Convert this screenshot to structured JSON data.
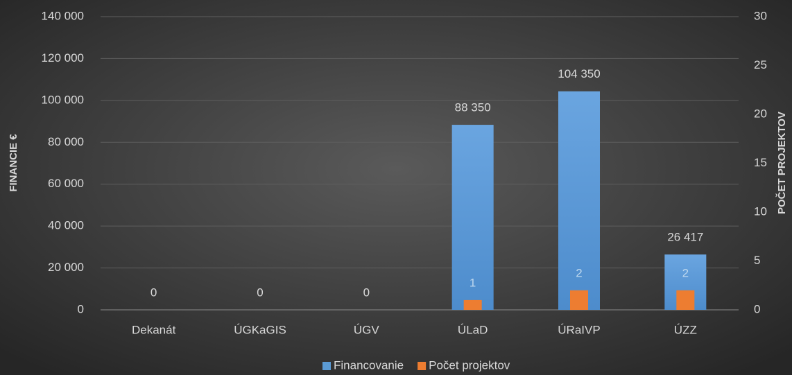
{
  "chart_data": {
    "type": "bar",
    "categories": [
      "Dekanát",
      "ÚGKaGIS",
      "ÚGV",
      "ÚLaD",
      "ÚRaIVP",
      "ÚZZ"
    ],
    "series": [
      {
        "name": "Financovanie",
        "color": "#5b9bd5",
        "values": [
          0,
          0,
          0,
          88350,
          104350,
          26417
        ],
        "value_labels": [
          "0",
          "0",
          "0",
          "88 350",
          "104 350",
          "26 417"
        ]
      },
      {
        "name": "Počet projektov",
        "color": "#ed7d31",
        "axis": "y2",
        "values": [
          0,
          0,
          0,
          1,
          2,
          2
        ]
      }
    ],
    "ylabel": "FINANCIE €",
    "y2label": "POČET PROJEKTOV",
    "ylim": [
      0,
      140000
    ],
    "yticks": [
      0,
      {
        "value": 20000,
        "label": "20 000"
      },
      {
        "value": 40000,
        "label": "40 000"
      },
      {
        "value": 60000,
        "label": "60 000"
      },
      {
        "value": 80000,
        "label": "80 000"
      },
      {
        "value": 100000,
        "label": "100 000"
      },
      {
        "value": 120000,
        "label": "120 000"
      },
      {
        "value": 140000,
        "label": "140 000"
      }
    ],
    "y2lim": [
      0,
      30
    ],
    "y2ticks": [
      0,
      5,
      10,
      15,
      20,
      25,
      30
    ],
    "grid": true,
    "legend": "bottom"
  }
}
